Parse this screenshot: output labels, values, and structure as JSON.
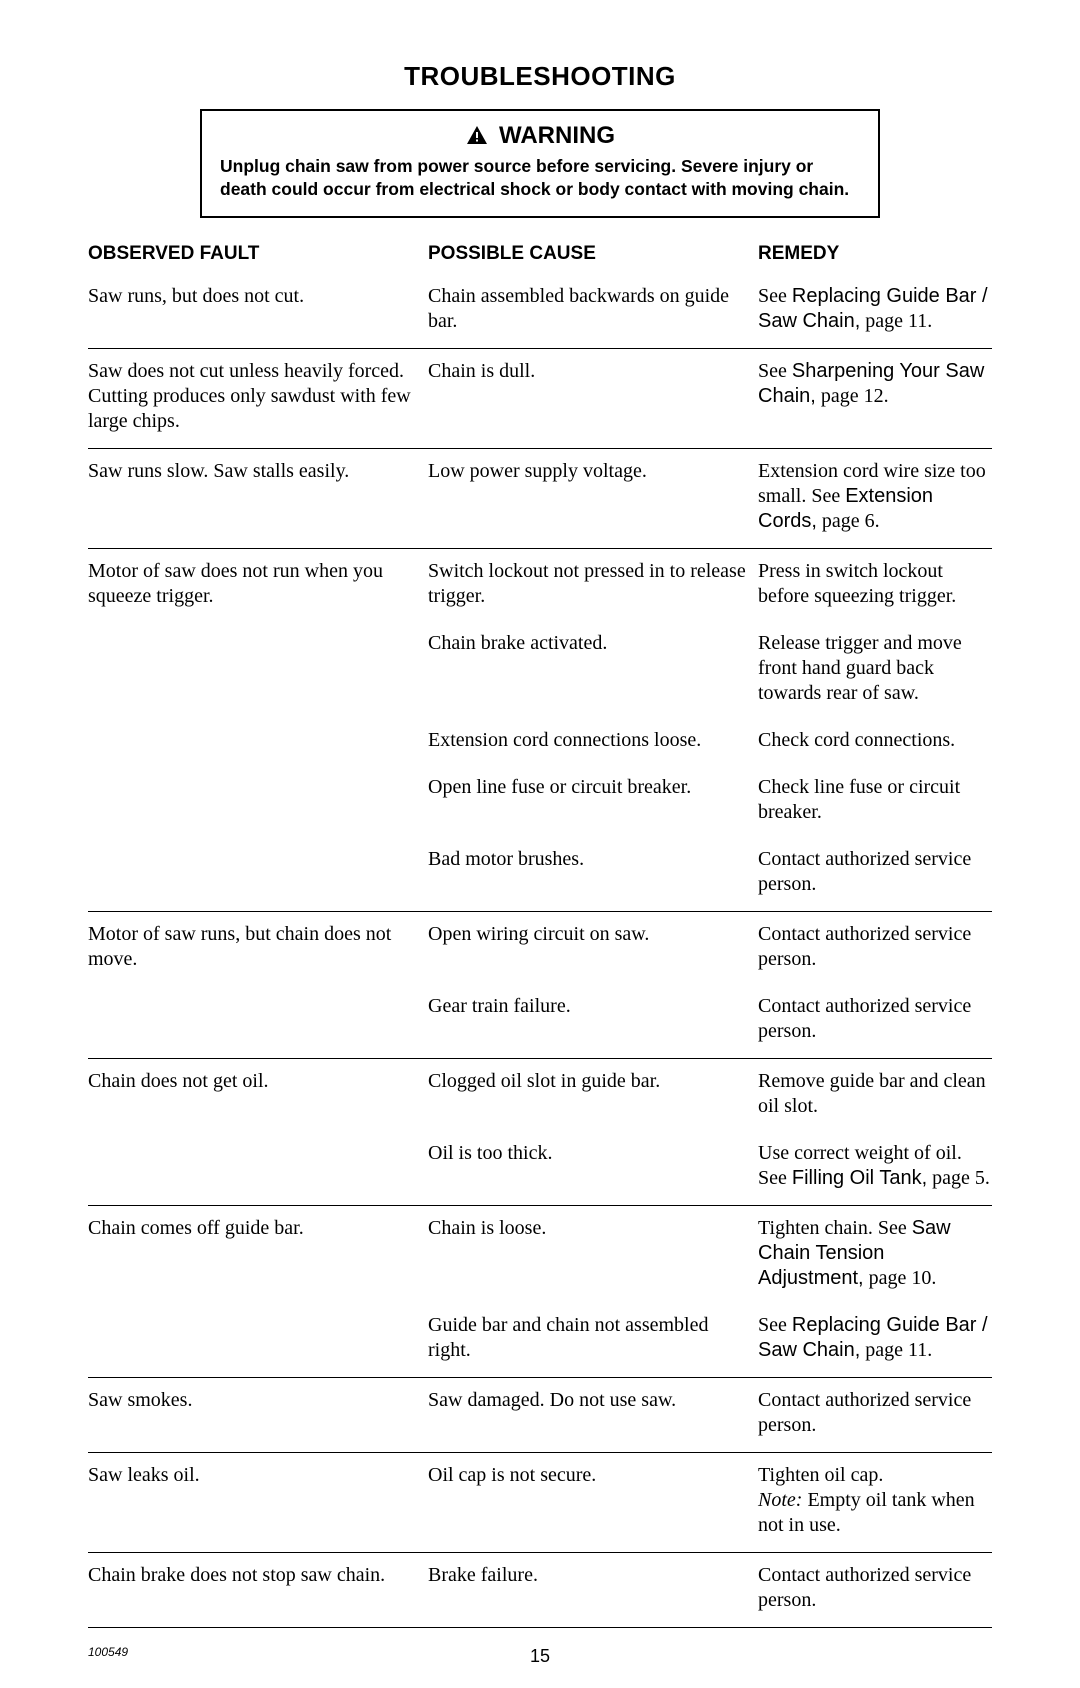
{
  "colors": {
    "text": "#000000",
    "background": "#ffffff",
    "rule": "#000000"
  },
  "page": {
    "title": "TROUBLESHOOTING",
    "doc_number": "100549",
    "page_number": "15"
  },
  "warning": {
    "head": "WARNING",
    "body": "Unplug chain saw from power source before servicing. Severe injury or death could occur from electrical shock or body contact with moving chain."
  },
  "headers": {
    "fault": "OBSERVED FAULT",
    "cause": "POSSIBLE CAUSE",
    "remedy": "REMEDY"
  },
  "table": [
    {
      "fault": "Saw runs, but does not cut.",
      "rows": [
        {
          "cause": "Chain assembled backwards on guide bar.",
          "remedy": [
            {
              "text": "See "
            },
            {
              "text": "Replacing Guide Bar / Saw Chain,",
              "sans": true
            },
            {
              "text": " page 11."
            }
          ]
        }
      ]
    },
    {
      "fault": "Saw does not cut unless heavily forced. Cutting produces only sawdust with few large chips.",
      "rows": [
        {
          "cause": "Chain is dull.",
          "remedy": [
            {
              "text": "See "
            },
            {
              "text": "Sharpening Your Saw Chain,",
              "sans": true
            },
            {
              "text": " page 12."
            }
          ]
        }
      ]
    },
    {
      "fault": "Saw runs slow. Saw stalls easily.",
      "rows": [
        {
          "cause": "Low power supply voltage.",
          "remedy": [
            {
              "text": "Extension cord wire size too small. See "
            },
            {
              "text": "Extension Cords,",
              "sans": true
            },
            {
              "text": " page 6."
            }
          ]
        }
      ]
    },
    {
      "fault": "Motor of saw does not run when you squeeze trigger.",
      "rows": [
        {
          "cause": "Switch lockout not pressed in to release trigger.",
          "remedy": [
            {
              "text": "Press in switch lockout before squeezing trigger."
            }
          ]
        },
        {
          "cause": "Chain brake activated.",
          "remedy": [
            {
              "text": "Release trigger and move front hand guard back towards rear of saw."
            }
          ]
        },
        {
          "cause": "Extension cord connections loose.",
          "remedy": [
            {
              "text": "Check cord connections."
            }
          ]
        },
        {
          "cause": "Open line fuse or circuit breaker.",
          "remedy": [
            {
              "text": "Check line fuse or circuit breaker."
            }
          ]
        },
        {
          "cause": "Bad motor brushes.",
          "remedy": [
            {
              "text": "Contact authorized service person."
            }
          ]
        }
      ]
    },
    {
      "fault": "Motor of saw runs, but chain does not move.",
      "rows": [
        {
          "cause": "Open wiring circuit on saw.",
          "remedy": [
            {
              "text": "Contact authorized service person."
            }
          ]
        },
        {
          "cause": "Gear train failure.",
          "remedy": [
            {
              "text": "Contact authorized service person."
            }
          ]
        }
      ]
    },
    {
      "fault": "Chain does not get oil.",
      "rows": [
        {
          "cause": "Clogged oil slot in guide bar.",
          "remedy": [
            {
              "text": "Remove guide bar and clean oil slot."
            }
          ]
        },
        {
          "cause": "Oil is too thick.",
          "remedy": [
            {
              "text": "Use correct weight of oil.  See "
            },
            {
              "text": "Filling Oil Tank,",
              "sans": true
            },
            {
              "text": " page 5."
            }
          ]
        }
      ]
    },
    {
      "fault": "Chain comes off guide bar.",
      "rows": [
        {
          "cause": "Chain is loose.",
          "remedy": [
            {
              "text": "Tighten chain. See "
            },
            {
              "text": "Saw Chain Tension Adjustment,",
              "sans": true
            },
            {
              "text": " page 10."
            }
          ]
        },
        {
          "cause": "Guide bar and chain not  assembled right.",
          "remedy": [
            {
              "text": "See "
            },
            {
              "text": "Replacing Guide Bar / Saw Chain,",
              "sans": true
            },
            {
              "text": " page 11."
            }
          ]
        }
      ]
    },
    {
      "fault": "Saw smokes.",
      "rows": [
        {
          "cause": "Saw damaged. Do not use saw.",
          "remedy": [
            {
              "text": "Contact authorized service person."
            }
          ]
        }
      ]
    },
    {
      "fault": "Saw leaks oil.",
      "rows": [
        {
          "cause": "Oil cap is not secure.",
          "remedy": [
            {
              "text": "Tighten oil cap."
            },
            {
              "text": "\n"
            },
            {
              "text": "Note:",
              "italic": true
            },
            {
              "text": " Empty oil tank when not in use."
            }
          ]
        }
      ]
    },
    {
      "fault": "Chain brake does not stop saw chain.",
      "rows": [
        {
          "cause": "Brake failure.",
          "remedy": [
            {
              "text": "Contact authorized service person."
            }
          ]
        }
      ]
    }
  ]
}
